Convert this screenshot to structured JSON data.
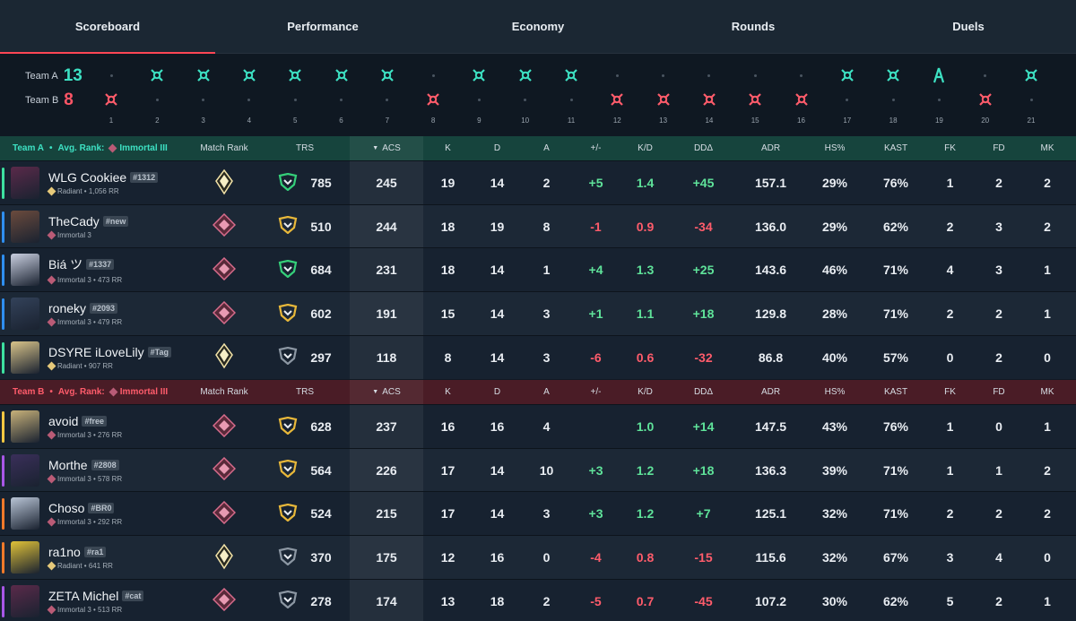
{
  "tabs": [
    {
      "label": "Scoreboard",
      "active": true
    },
    {
      "label": "Performance",
      "active": false
    },
    {
      "label": "Economy",
      "active": false
    },
    {
      "label": "Rounds",
      "active": false
    },
    {
      "label": "Duels",
      "active": false
    }
  ],
  "rounds": {
    "team_a": {
      "label": "Team A",
      "score": "13"
    },
    "team_b": {
      "label": "Team B",
      "score": "8"
    },
    "numbers": [
      "1",
      "2",
      "3",
      "4",
      "5",
      "6",
      "7",
      "8",
      "9",
      "10",
      "11",
      "12",
      "13",
      "14",
      "15",
      "16",
      "17",
      "18",
      "19",
      "20",
      "21"
    ],
    "winners": [
      "B",
      "A",
      "A",
      "A",
      "A",
      "A",
      "A",
      "B",
      "A",
      "A",
      "A",
      "B",
      "B",
      "B",
      "B",
      "B",
      "A",
      "A",
      "A",
      "B",
      "A"
    ],
    "outcome_icons": [
      "elimination",
      "elimination",
      "elimination",
      "elimination",
      "elimination",
      "elimination",
      "elimination",
      "elimination",
      "elimination",
      "elimination",
      "elimination",
      "elimination",
      "elimination",
      "elimination",
      "elimination",
      "elimination",
      "elimination",
      "elimination",
      "defuse",
      "elimination",
      "elimination"
    ]
  },
  "columns": {
    "match_rank": "Match Rank",
    "trs": "TRS",
    "acs": "ACS",
    "k": "K",
    "d": "D",
    "a": "A",
    "pm": "+/-",
    "kd": "K/D",
    "dd": "DDΔ",
    "adr": "ADR",
    "hs": "HS%",
    "kast": "KAST",
    "fk": "FK",
    "fd": "FD",
    "mk": "MK"
  },
  "team_a": {
    "name": "Team A",
    "avg_rank_label": "Avg. Rank:",
    "avg_rank": "Immortal III",
    "color": "#3de1c3",
    "players": [
      {
        "name": "WLG Cookiee",
        "tag": "#1312",
        "rank": "Radiant • 1,056 RR",
        "rank_type": "radiant",
        "match_rank": "radiant",
        "trs_badge": "green",
        "trs": "785",
        "acs": "245",
        "k": "19",
        "d": "14",
        "a": "2",
        "pm": "+5",
        "kd": "1.4",
        "dd": "+45",
        "adr": "157.1",
        "hs": "29%",
        "kast": "76%",
        "fk": "1",
        "fd": "2",
        "mk": "2",
        "bar": "#3de1a0",
        "avatar": "#5a2a4a"
      },
      {
        "name": "TheCady",
        "tag": "#new",
        "rank": "Immortal 3",
        "rank_type": "immortal",
        "match_rank": "immortal",
        "trs_badge": "gold",
        "trs": "510",
        "acs": "244",
        "k": "18",
        "d": "19",
        "a": "8",
        "pm": "-1",
        "kd": "0.9",
        "dd": "-34",
        "adr": "136.0",
        "hs": "29%",
        "kast": "62%",
        "fk": "2",
        "fd": "3",
        "mk": "2",
        "bar": "#2f8ff0",
        "avatar": "#6b4b3d"
      },
      {
        "name": "Biá ツ",
        "tag": "#1337",
        "rank": "Immortal 3 • 473 RR",
        "rank_type": "immortal",
        "match_rank": "immortal",
        "trs_badge": "green",
        "trs": "684",
        "acs": "231",
        "k": "18",
        "d": "14",
        "a": "1",
        "pm": "+4",
        "kd": "1.3",
        "dd": "+25",
        "adr": "143.6",
        "hs": "46%",
        "kast": "71%",
        "fk": "4",
        "fd": "3",
        "mk": "1",
        "bar": "#2f8ff0",
        "avatar": "#c9cfe0"
      },
      {
        "name": "roneky",
        "tag": "#2093",
        "rank": "Immortal 3 • 479 RR",
        "rank_type": "immortal",
        "match_rank": "immortal",
        "trs_badge": "gold",
        "trs": "602",
        "acs": "191",
        "k": "15",
        "d": "14",
        "a": "3",
        "pm": "+1",
        "kd": "1.1",
        "dd": "+18",
        "adr": "129.8",
        "hs": "28%",
        "kast": "71%",
        "fk": "2",
        "fd": "2",
        "mk": "1",
        "bar": "#2f8ff0",
        "avatar": "#33425a"
      },
      {
        "name": "DSYRE iLoveLily",
        "tag": "#Tag",
        "rank": "Radiant • 907 RR",
        "rank_type": "radiant",
        "match_rank": "radiant",
        "trs_badge": "silver",
        "trs": "297",
        "acs": "118",
        "k": "8",
        "d": "14",
        "a": "3",
        "pm": "-6",
        "kd": "0.6",
        "dd": "-32",
        "adr": "86.8",
        "hs": "40%",
        "kast": "57%",
        "fk": "0",
        "fd": "2",
        "mk": "0",
        "bar": "#3de1a0",
        "avatar": "#d9c48a"
      }
    ]
  },
  "team_b": {
    "name": "Team B",
    "avg_rank_label": "Avg. Rank:",
    "avg_rank": "Immortal III",
    "color": "#ff5c6b",
    "players": [
      {
        "name": "avoid",
        "tag": "#free",
        "rank": "Immortal 3 • 276 RR",
        "rank_type": "immortal",
        "match_rank": "immortal",
        "trs_badge": "gold",
        "trs": "628",
        "acs": "237",
        "k": "16",
        "d": "16",
        "a": "4",
        "pm": "",
        "kd": "1.0",
        "dd": "+14",
        "adr": "147.5",
        "hs": "43%",
        "kast": "76%",
        "fk": "1",
        "fd": "0",
        "mk": "1",
        "bar": "#f5c842",
        "avatar": "#c8b27a"
      },
      {
        "name": "Morthe",
        "tag": "#2808",
        "rank": "Immortal 3 • 578 RR",
        "rank_type": "immortal",
        "match_rank": "immortal",
        "trs_badge": "gold",
        "trs": "564",
        "acs": "226",
        "k": "17",
        "d": "14",
        "a": "10",
        "pm": "+3",
        "kd": "1.2",
        "dd": "+18",
        "adr": "136.3",
        "hs": "39%",
        "kast": "71%",
        "fk": "1",
        "fd": "1",
        "mk": "2",
        "bar": "#a857e8",
        "avatar": "#3a2f5a"
      },
      {
        "name": "Choso",
        "tag": "#BR0",
        "rank": "Immortal 3 • 292 RR",
        "rank_type": "immortal",
        "match_rank": "immortal",
        "trs_badge": "gold",
        "trs": "524",
        "acs": "215",
        "k": "17",
        "d": "14",
        "a": "3",
        "pm": "+3",
        "kd": "1.2",
        "dd": "+7",
        "adr": "125.1",
        "hs": "32%",
        "kast": "71%",
        "fk": "2",
        "fd": "2",
        "mk": "2",
        "bar": "#f07a2a",
        "avatar": "#b9c5d6"
      },
      {
        "name": "ra1no",
        "tag": "#ra1",
        "rank": "Radiant • 641 RR",
        "rank_type": "radiant",
        "match_rank": "radiant",
        "trs_badge": "silver",
        "trs": "370",
        "acs": "175",
        "k": "12",
        "d": "16",
        "a": "0",
        "pm": "-4",
        "kd": "0.8",
        "dd": "-15",
        "adr": "115.6",
        "hs": "32%",
        "kast": "67%",
        "fk": "3",
        "fd": "4",
        "mk": "0",
        "bar": "#f07a2a",
        "avatar": "#e0c238"
      },
      {
        "name": "ZETA Michel",
        "tag": "#cat",
        "rank": "Immortal 3 • 513 RR",
        "rank_type": "immortal",
        "match_rank": "immortal",
        "trs_badge": "silver",
        "trs": "278",
        "acs": "174",
        "k": "13",
        "d": "18",
        "a": "2",
        "pm": "-5",
        "kd": "0.7",
        "dd": "-45",
        "adr": "107.2",
        "hs": "30%",
        "kast": "62%",
        "fk": "5",
        "fd": "2",
        "mk": "1",
        "bar": "#a857e8",
        "avatar": "#5a2a4a"
      }
    ]
  },
  "colors": {
    "team_a": "#3de1c3",
    "team_b": "#ff5c6b",
    "positive": "#5fe39a",
    "negative": "#ff5c6b",
    "accent": "#ff4655"
  }
}
